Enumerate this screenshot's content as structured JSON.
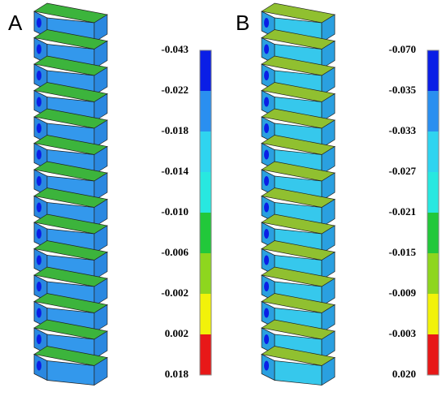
{
  "panels": [
    {
      "label": "A",
      "colorbar": {
        "labels": [
          "-0.043",
          "-0.022",
          "-0.018",
          "-0.014",
          "-0.010",
          "-0.006",
          "-0.002",
          "0.002",
          "0.018"
        ],
        "colors": [
          "#0a1ee6",
          "#2a8ff0",
          "#2fd4f0",
          "#28e8e0",
          "#22c83a",
          "#8ed61e",
          "#f2f20a",
          "#e81818"
        ]
      },
      "faces": {
        "front": "#3398ec",
        "top": "#3cb43c",
        "side": "#2a88e0"
      }
    },
    {
      "label": "B",
      "colorbar": {
        "labels": [
          "-0.070",
          "-0.035",
          "-0.033",
          "-0.027",
          "-0.021",
          "-0.015",
          "-0.009",
          "-0.003",
          "0.020"
        ],
        "colors": [
          "#0a1ee6",
          "#2a8ff0",
          "#2fd4f0",
          "#28e8e0",
          "#22c83a",
          "#8ed61e",
          "#f2f20a",
          "#e81818"
        ]
      },
      "faces": {
        "front": "#36c8ec",
        "top": "#90c030",
        "side": "#2aa0e0"
      }
    }
  ]
}
